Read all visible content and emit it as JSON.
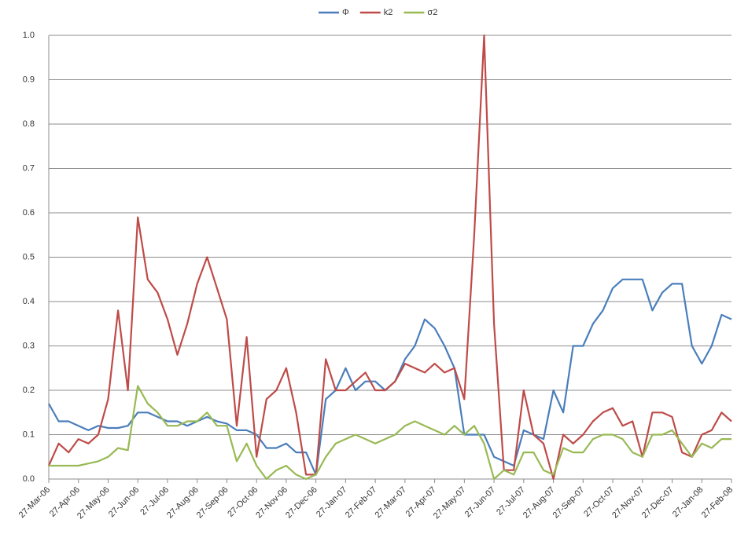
{
  "chart_data": {
    "type": "line",
    "categories": [
      "27-Mar-06",
      null,
      null,
      "27-Apr-06",
      null,
      null,
      "27-May-06",
      null,
      null,
      "27-Jun-06",
      null,
      null,
      "27-Jul-06",
      null,
      null,
      "27-Aug-06",
      null,
      null,
      "27-Sep-06",
      null,
      null,
      "27-Oct-06",
      null,
      null,
      "27-Nov-06",
      null,
      null,
      "27-Dec-06",
      null,
      null,
      "27-Jan-07",
      null,
      null,
      "27-Feb-07",
      null,
      null,
      "27-Mar-07",
      null,
      null,
      "27-Apr-07",
      null,
      null,
      "27-May-07",
      null,
      null,
      "27-Jun-07",
      null,
      null,
      "27-Jul-07",
      null,
      null,
      "27-Aug-07",
      null,
      null,
      "27-Sep-07",
      null,
      null,
      "27-Oct-07",
      null,
      null,
      "27-Nov-07",
      null,
      null,
      "27-Dec-07",
      null,
      null,
      "27-Jan-08",
      null,
      null,
      "27-Feb-08"
    ],
    "series": [
      {
        "name": "Φ",
        "color": "#4a7ebb",
        "values": [
          0.17,
          0.13,
          0.13,
          0.12,
          0.11,
          0.12,
          0.115,
          0.115,
          0.12,
          0.15,
          0.15,
          0.14,
          0.13,
          0.13,
          0.12,
          0.13,
          0.14,
          0.13,
          0.125,
          0.11,
          0.11,
          0.1,
          0.07,
          0.07,
          0.08,
          0.06,
          0.06,
          0.01,
          0.18,
          0.2,
          0.25,
          0.2,
          0.22,
          0.22,
          0.2,
          0.22,
          0.27,
          0.3,
          0.36,
          0.34,
          0.3,
          0.25,
          0.1,
          0.1,
          0.1,
          0.05,
          0.04,
          0.03,
          0.11,
          0.1,
          0.09,
          0.2,
          0.15,
          0.3,
          0.3,
          0.35,
          0.38,
          0.43,
          0.45,
          0.45,
          0.45,
          0.38,
          0.42,
          0.44,
          0.44,
          0.3,
          0.26,
          0.3,
          0.37,
          0.36
        ]
      },
      {
        "name": "k2",
        "color": "#be4b48",
        "values": [
          0.03,
          0.08,
          0.06,
          0.09,
          0.08,
          0.1,
          0.18,
          0.38,
          0.2,
          0.59,
          0.45,
          0.42,
          0.36,
          0.28,
          0.35,
          0.44,
          0.5,
          0.43,
          0.36,
          0.12,
          0.32,
          0.05,
          0.18,
          0.2,
          0.25,
          0.15,
          0.01,
          0.01,
          0.27,
          0.2,
          0.2,
          0.22,
          0.24,
          0.2,
          0.2,
          0.22,
          0.26,
          0.25,
          0.24,
          0.26,
          0.24,
          0.25,
          0.18,
          0.55,
          1,
          0.35,
          0.02,
          0.02,
          0.2,
          0.1,
          0.08,
          0,
          0.1,
          0.08,
          0.1,
          0.13,
          0.15,
          0.16,
          0.12,
          0.13,
          0.05,
          0.15,
          0.15,
          0.14,
          0.06,
          0.05,
          0.1,
          0.11,
          0.15,
          0.13
        ]
      },
      {
        "name": "σ2",
        "color": "#98b954",
        "values": [
          0.03,
          0.03,
          0.03,
          0.03,
          0.035,
          0.04,
          0.05,
          0.07,
          0.065,
          0.21,
          0.17,
          0.15,
          0.12,
          0.12,
          0.13,
          0.13,
          0.15,
          0.12,
          0.12,
          0.04,
          0.08,
          0.03,
          0,
          0.02,
          0.03,
          0.01,
          0,
          0.01,
          0.05,
          0.08,
          0.09,
          0.1,
          0.09,
          0.08,
          0.09,
          0.1,
          0.12,
          0.13,
          0.12,
          0.11,
          0.1,
          0.12,
          0.1,
          0.12,
          0.08,
          0,
          0.02,
          0.01,
          0.06,
          0.06,
          0.02,
          0.01,
          0.07,
          0.06,
          0.06,
          0.09,
          0.1,
          0.1,
          0.09,
          0.06,
          0.05,
          0.1,
          0.1,
          0.11,
          0.08,
          0.05,
          0.08,
          0.07,
          0.09,
          0.09
        ]
      }
    ],
    "ylim": [
      0,
      1
    ],
    "yticks": [
      {
        "value": 0,
        "label": "0.0"
      },
      0.1,
      0.2,
      0.3,
      0.4,
      0.5,
      0.6,
      0.7,
      0.8,
      0.9,
      {
        "value": 1,
        "label": "1.0"
      }
    ],
    "grid": true,
    "legend": "top"
  }
}
